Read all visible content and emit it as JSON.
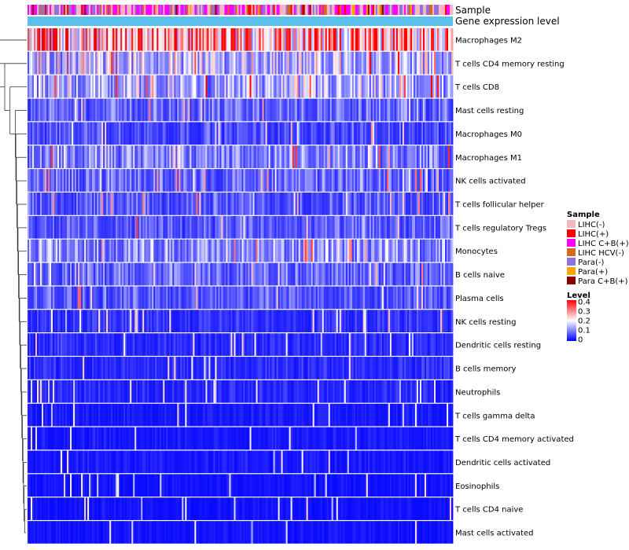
{
  "chart_data": {
    "type": "heatmap",
    "title": "",
    "annotation_rows": [
      "Sample",
      "Gene expression level"
    ],
    "rows": [
      {
        "name": "Macrophages M2",
        "mean": 0.28
      },
      {
        "name": "T cells CD4 memory resting",
        "mean": 0.15
      },
      {
        "name": "T cells CD8",
        "mean": 0.13
      },
      {
        "name": "Mast cells resting",
        "mean": 0.08
      },
      {
        "name": "Macrophages M0",
        "mean": 0.06
      },
      {
        "name": "Macrophages M1",
        "mean": 0.1
      },
      {
        "name": "NK cells activated",
        "mean": 0.08
      },
      {
        "name": "T cells follicular helper",
        "mean": 0.07
      },
      {
        "name": "T cells regulatory  Tregs",
        "mean": 0.07
      },
      {
        "name": "Monocytes",
        "mean": 0.11
      },
      {
        "name": "B cells naive",
        "mean": 0.08
      },
      {
        "name": "Plasma cells",
        "mean": 0.07
      },
      {
        "name": "NK cells resting",
        "mean": 0.04
      },
      {
        "name": "Dendritic cells resting",
        "mean": 0.035
      },
      {
        "name": "B cells memory",
        "mean": 0.035
      },
      {
        "name": "Neutrophils",
        "mean": 0.03
      },
      {
        "name": "T cells gamma delta",
        "mean": 0.02
      },
      {
        "name": "T cells CD4 memory activated",
        "mean": 0.02
      },
      {
        "name": "Dendritic cells activated",
        "mean": 0.02
      },
      {
        "name": "Eosinophils",
        "mean": 0.015
      },
      {
        "name": "T cells CD4 naive",
        "mean": 0.015
      },
      {
        "name": "Mast cells activated",
        "mean": 0.015
      }
    ],
    "sample_legend": {
      "title": "Sample",
      "entries": [
        {
          "label": "LIHC(-)",
          "color": "#f7b6c2"
        },
        {
          "label": "LIHC(+)",
          "color": "#ff0000"
        },
        {
          "label": "LIHC C+B(+)",
          "color": "#ff00ff"
        },
        {
          "label": "LIHC HCV(-)",
          "color": "#d2691e"
        },
        {
          "label": "Para(-)",
          "color": "#9370db"
        },
        {
          "label": "Para(+)",
          "color": "#ffa500"
        },
        {
          "label": "Para C+B(+)",
          "color": "#8b0000"
        }
      ]
    },
    "level_legend": {
      "title": "Level",
      "ticks": [
        "0.4",
        "0.3",
        "0.2",
        "0.1",
        "0"
      ],
      "range": [
        0,
        0.4
      ],
      "color_low": "#0000ff",
      "color_mid": "#ffffff",
      "color_high": "#ff0000"
    },
    "expression_annotation_color": "#5bc0eb"
  }
}
